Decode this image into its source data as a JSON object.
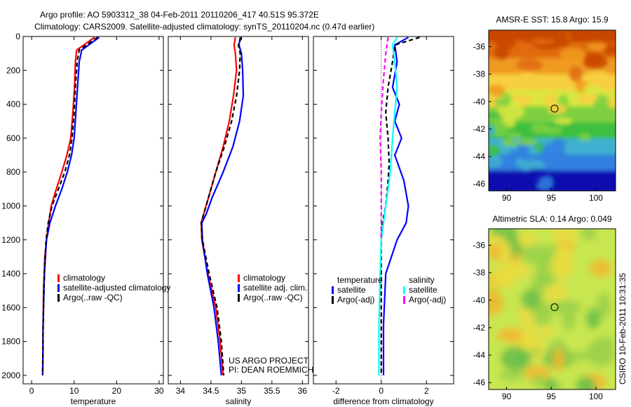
{
  "title_line1": "Argo profile: AO 5903312_38 04-Feb-2011 20110206_417 40.51S 95.372E",
  "title_line2": "Climatology: CARS2009. Satellite-adjusted climatology: synTS_20110204.nc (0.47d earlier)",
  "credit_line1": "US ARGO PROJECT",
  "credit_line2": "PI: DEAN ROEMMICH",
  "side_stamp": "CSIRO 10-Feb-2011 10:31:35",
  "colors": {
    "climatology": "#ff0000",
    "satellite": "#0000ff",
    "argo": "#000000",
    "sat_salinity": "#00ffff",
    "argo_salinity": "#ff00ff"
  },
  "chart_data": [
    {
      "type": "line",
      "xlabel": "temperature",
      "ylabel": "",
      "xlim": [
        -2,
        31
      ],
      "ylim": [
        2050,
        0
      ],
      "xticks": [
        0,
        10,
        20,
        30
      ],
      "yticks": [
        0,
        200,
        400,
        600,
        800,
        1000,
        1200,
        1400,
        1600,
        1800,
        2000
      ],
      "legend": [
        "climatology",
        "satellite-adjusted climatology",
        "Argo(..raw -QC)"
      ],
      "series": [
        {
          "name": "climatology",
          "color": "#ff0000",
          "style": "solid",
          "x": [
            14.8,
            10.6,
            10.3,
            10.1,
            9.7,
            9.2,
            8.3,
            7.1,
            5.8,
            4.6,
            4.0,
            3.5,
            3.1,
            2.8,
            2.7,
            2.6
          ],
          "y": [
            5,
            80,
            150,
            300,
            450,
            600,
            700,
            800,
            900,
            1000,
            1100,
            1200,
            1300,
            1500,
            1700,
            2000
          ]
        },
        {
          "name": "satellite-adjusted climatology",
          "color": "#0000ff",
          "style": "solid",
          "x": [
            15.9,
            11.8,
            11.2,
            10.8,
            10.4,
            10.0,
            9.4,
            8.4,
            7.1,
            5.6,
            4.3,
            3.5,
            3.0,
            2.7,
            2.6
          ],
          "y": [
            5,
            80,
            150,
            300,
            450,
            600,
            700,
            800,
            900,
            1000,
            1100,
            1200,
            1400,
            1700,
            2000
          ]
        },
        {
          "name": "Argo(..raw -QC)",
          "color": "#000000",
          "style": "dashed",
          "x": [
            15.5,
            11.2,
            10.7,
            10.3,
            10.0,
            9.5,
            8.9,
            7.8,
            6.3,
            4.8,
            3.9,
            3.4,
            3.0,
            2.7,
            2.6
          ],
          "y": [
            5,
            80,
            150,
            300,
            450,
            600,
            700,
            800,
            900,
            1000,
            1100,
            1200,
            1400,
            1700,
            2000
          ]
        }
      ]
    },
    {
      "type": "line",
      "xlabel": "salinity",
      "ylabel": "",
      "xlim": [
        33.8,
        36.1
      ],
      "ylim": [
        2050,
        0
      ],
      "xticks": [
        34,
        34.5,
        35,
        35.5,
        36
      ],
      "legend": [
        "climatology",
        "satellite adj. clim.",
        "Argo(..raw -QC)"
      ],
      "series": [
        {
          "name": "climatology",
          "color": "#ff0000",
          "style": "solid",
          "x": [
            34.9,
            34.88,
            34.9,
            34.92,
            34.87,
            34.8,
            34.7,
            34.58,
            34.46,
            34.38,
            34.34,
            34.35,
            34.45,
            34.58,
            34.65,
            34.7
          ],
          "y": [
            5,
            50,
            100,
            200,
            350,
            500,
            650,
            800,
            950,
            1050,
            1100,
            1200,
            1400,
            1600,
            1800,
            2000
          ]
        },
        {
          "name": "satellite adj. clim.",
          "color": "#0000ff",
          "style": "solid",
          "x": [
            34.98,
            34.96,
            35.0,
            35.02,
            35.03,
            34.97,
            34.86,
            34.7,
            34.52,
            34.42,
            34.35,
            34.36,
            34.44,
            34.55,
            34.62,
            34.67
          ],
          "y": [
            5,
            50,
            100,
            200,
            350,
            500,
            650,
            800,
            950,
            1050,
            1100,
            1200,
            1400,
            1600,
            1800,
            2000
          ]
        },
        {
          "name": "Argo(..raw -QC)",
          "color": "#000000",
          "style": "dashed",
          "x": [
            35.0,
            34.95,
            34.98,
            34.97,
            34.92,
            34.84,
            34.72,
            34.58,
            34.46,
            34.38,
            34.34,
            34.36,
            34.47,
            34.6,
            34.67,
            34.71
          ],
          "y": [
            5,
            50,
            100,
            200,
            350,
            500,
            650,
            800,
            950,
            1050,
            1100,
            1200,
            1400,
            1600,
            1800,
            2000
          ]
        }
      ]
    },
    {
      "type": "line",
      "xlabel": "difference from climatology",
      "ylabel": "",
      "xlim": [
        -3,
        3.2
      ],
      "ylim": [
        2050,
        0
      ],
      "xticks": [
        -2,
        0,
        2
      ],
      "legend_groups": [
        {
          "heading": "temperature",
          "entries": [
            "satellite",
            "Argo(-adj)"
          ]
        },
        {
          "heading": "salinity",
          "entries": [
            "satellite",
            "Argo(-adj)"
          ]
        }
      ],
      "series": [
        {
          "name": "satellite",
          "quantity": "temperature",
          "color": "#0000ff",
          "style": "solid",
          "x": [
            1.2,
            0.6,
            0.7,
            0.5,
            0.8,
            0.6,
            0.9,
            0.6,
            1.0,
            1.2,
            1.1,
            0.7,
            0.2,
            0.1,
            0.1
          ],
          "y": [
            5,
            50,
            150,
            300,
            400,
            500,
            600,
            700,
            850,
            1000,
            1100,
            1200,
            1400,
            1700,
            2000
          ]
        },
        {
          "name": "Argo(-adj)",
          "quantity": "temperature",
          "color": "#000000",
          "style": "dashed",
          "x": [
            1.7,
            0.6,
            0.5,
            0.3,
            0.2,
            0.3,
            0.35,
            0.3,
            0.2,
            0.05,
            0.0,
            0.0,
            0.0
          ],
          "y": [
            5,
            50,
            150,
            300,
            450,
            600,
            750,
            850,
            1000,
            1100,
            1200,
            1500,
            2000
          ]
        },
        {
          "name": "satellite",
          "quantity": "salinity",
          "color": "#00ffff",
          "style": "solid",
          "x": [
            0.7,
            0.5,
            0.6,
            0.7,
            0.6,
            0.5,
            0.4,
            0.2,
            0.0,
            -0.05,
            -0.1,
            -0.1
          ],
          "y": [
            5,
            50,
            150,
            300,
            450,
            600,
            800,
            1000,
            1200,
            1400,
            1700,
            2000
          ]
        },
        {
          "name": "Argo(-adj)",
          "quantity": "salinity",
          "color": "#ff00ff",
          "style": "dashed",
          "x": [
            0.3,
            0.2,
            0.1,
            0.0,
            -0.05,
            0.0,
            0.0,
            0.0
          ],
          "y": [
            5,
            100,
            250,
            450,
            600,
            800,
            1000,
            1200
          ]
        }
      ]
    },
    {
      "type": "heatmap",
      "title": "AMSR-E SST: 15.8 Argo: 15.9",
      "xlim": [
        88,
        102.2
      ],
      "ylim": [
        -46.5,
        -34.8
      ],
      "xticks": [
        90,
        95,
        100
      ],
      "yticks": [
        -36,
        -38,
        -40,
        -42,
        -44,
        -46
      ],
      "marker": {
        "lon": 95.372,
        "lat": -40.51
      },
      "colors_top_to_bottom": [
        "#c84600",
        "#e06a10",
        "#f09a20",
        "#f7cf40",
        "#d9e640",
        "#7ed040",
        "#3cc040",
        "#40b0d0",
        "#3080e0",
        "#1010b0"
      ]
    },
    {
      "type": "heatmap",
      "title": "Altimetric SLA: 0.14 Argo: 0.049",
      "xlim": [
        88,
        102.2
      ],
      "ylim": [
        -46.5,
        -34.8
      ],
      "xticks": [
        90,
        95,
        100
      ],
      "yticks": [
        -36,
        -38,
        -40,
        -42,
        -44,
        -46
      ],
      "marker": {
        "lon": 95.372,
        "lat": -40.51
      },
      "colors": [
        "#c8e650",
        "#9ad04a",
        "#6cc048",
        "#e8dc40",
        "#f0b830"
      ]
    }
  ]
}
